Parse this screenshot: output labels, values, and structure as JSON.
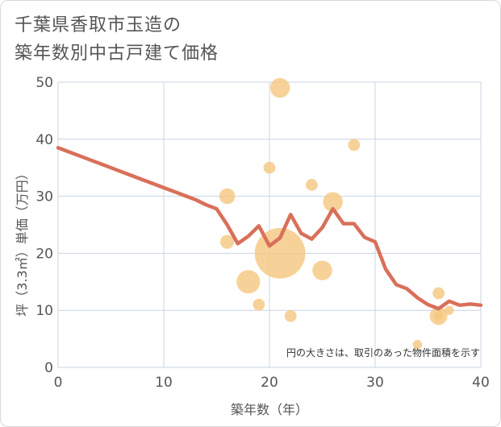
{
  "chart_data": {
    "type": "scatter+line",
    "title_lines": [
      "千葉県香取市玉造の",
      "築年数別中古戸建て価格"
    ],
    "xlabel": "築年数（年）",
    "ylabel": "坪（3.3㎡）単価（万円）",
    "xlim": [
      0,
      40
    ],
    "ylim": [
      0,
      50
    ],
    "xticks": [
      0,
      10,
      20,
      30,
      40
    ],
    "yticks": [
      0,
      10,
      20,
      30,
      40,
      50
    ],
    "grid": true,
    "annotation": "円の大きさは、取引のあった物件面積を示す",
    "colors": {
      "line": "#d9705a",
      "bubble": "#f5c77e",
      "grid": "#c8d4e3",
      "text": "#555555"
    },
    "scatter": [
      {
        "x": 16,
        "y": 30,
        "size": 3
      },
      {
        "x": 16,
        "y": 22,
        "size": 2.5
      },
      {
        "x": 18,
        "y": 15,
        "size": 5
      },
      {
        "x": 19,
        "y": 11,
        "size": 2
      },
      {
        "x": 20,
        "y": 35,
        "size": 2
      },
      {
        "x": 21,
        "y": 49,
        "size": 4
      },
      {
        "x": 21,
        "y": 20,
        "size": 12
      },
      {
        "x": 22,
        "y": 9,
        "size": 2
      },
      {
        "x": 24,
        "y": 32,
        "size": 2
      },
      {
        "x": 25,
        "y": 17,
        "size": 4
      },
      {
        "x": 26,
        "y": 29,
        "size": 4
      },
      {
        "x": 28,
        "y": 39,
        "size": 2
      },
      {
        "x": 34,
        "y": 4,
        "size": 1.3
      },
      {
        "x": 36,
        "y": 13,
        "size": 2
      },
      {
        "x": 36,
        "y": 9,
        "size": 3.5
      },
      {
        "x": 36,
        "y": 9,
        "size": 1.3
      },
      {
        "x": 37,
        "y": 10,
        "size": 1.3
      }
    ],
    "line": {
      "x": [
        0,
        1,
        2,
        3,
        4,
        5,
        6,
        7,
        8,
        9,
        10,
        11,
        12,
        13,
        14,
        15,
        16,
        17,
        18,
        19,
        20,
        21,
        22,
        23,
        24,
        25,
        26,
        27,
        28,
        29,
        30,
        31,
        32,
        33,
        34,
        35,
        36,
        37,
        38,
        39,
        40
      ],
      "y": [
        38.5,
        37.8,
        37.1,
        36.4,
        35.7,
        35.0,
        34.3,
        33.6,
        32.9,
        32.2,
        31.5,
        30.8,
        30.1,
        29.4,
        28.5,
        27.8,
        25.0,
        21.7,
        23.0,
        24.8,
        21.3,
        22.7,
        26.8,
        23.5,
        22.5,
        24.5,
        27.8,
        25.2,
        25.2,
        22.8,
        22.0,
        17.2,
        14.5,
        13.8,
        12.2,
        11.0,
        10.3,
        11.6,
        10.9,
        11.1,
        10.9
      ]
    }
  }
}
